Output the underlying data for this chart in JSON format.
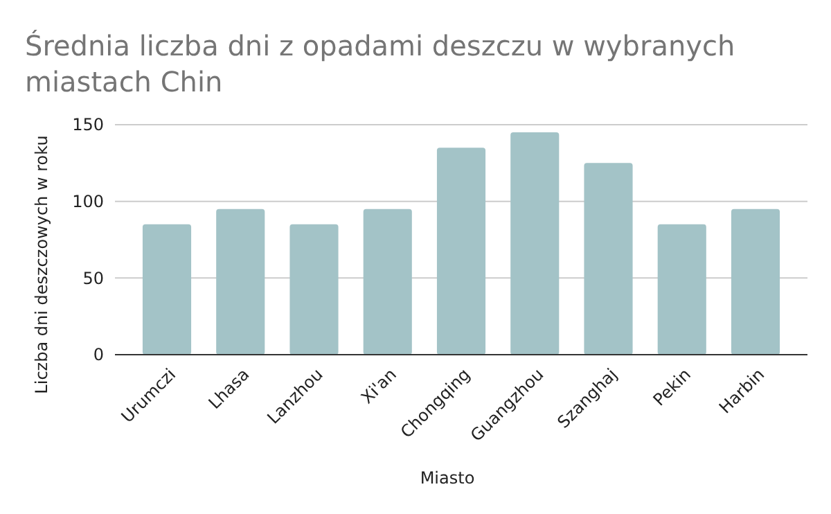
{
  "chart_data": {
    "type": "bar",
    "title": "Średnia liczba dni z opadami deszczu w wybranych miastach Chin",
    "xlabel": "Miasto",
    "ylabel": "Liczba dni deszczowych w roku",
    "categories": [
      "Urumczi",
      "Lhasa",
      "Lanzhou",
      "Xi'an",
      "Chongqing",
      "Guangzhou",
      "Szanghaj",
      "Pekin",
      "Harbin"
    ],
    "values": [
      85,
      95,
      85,
      95,
      135,
      145,
      125,
      85,
      95
    ],
    "color": "#a3c3c7",
    "ylim": [
      0,
      150
    ],
    "yticks": [
      0,
      50,
      100,
      150
    ],
    "grid": "y"
  }
}
